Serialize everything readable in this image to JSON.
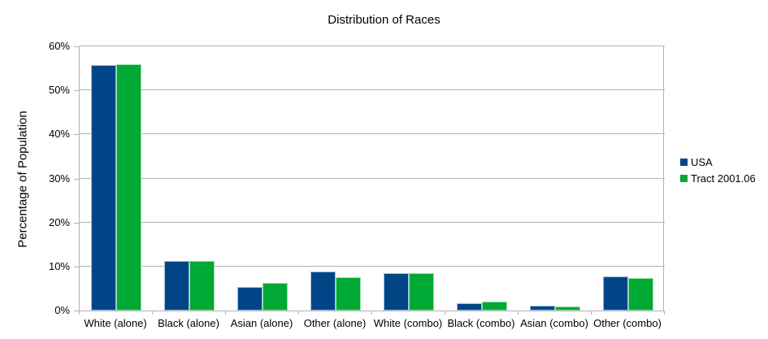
{
  "chart_data": {
    "type": "bar",
    "title": "Distribution of Races",
    "ylabel": "Percentage of Population",
    "xlabel": "",
    "ylim": [
      0,
      60
    ],
    "ytick_step": 10,
    "ytick_labels": [
      "0%",
      "10%",
      "20%",
      "30%",
      "40%",
      "50%",
      "60%"
    ],
    "grid": true,
    "legend_position": "right",
    "categories": [
      "White (alone)",
      "Black (alone)",
      "Asian (alone)",
      "Other (alone)",
      "White (combo)",
      "Black (combo)",
      "Asian (combo)",
      "Other (combo)"
    ],
    "series": [
      {
        "name": "USA",
        "color": "#004586",
        "edge_color": "#9ec1e0",
        "values": [
          55.7,
          11.2,
          5.4,
          8.8,
          8.5,
          1.6,
          1.1,
          7.8
        ]
      },
      {
        "name": "Tract 2001.06",
        "color": "#00a933",
        "edge_color": "#97e0a9",
        "values": [
          55.9,
          11.3,
          6.2,
          7.6,
          8.5,
          2.1,
          1.0,
          7.3
        ]
      }
    ],
    "colors": {
      "grid": "#b3b3b3",
      "axis": "#b3b3b3",
      "text": "#000000",
      "background": "#ffffff"
    }
  }
}
